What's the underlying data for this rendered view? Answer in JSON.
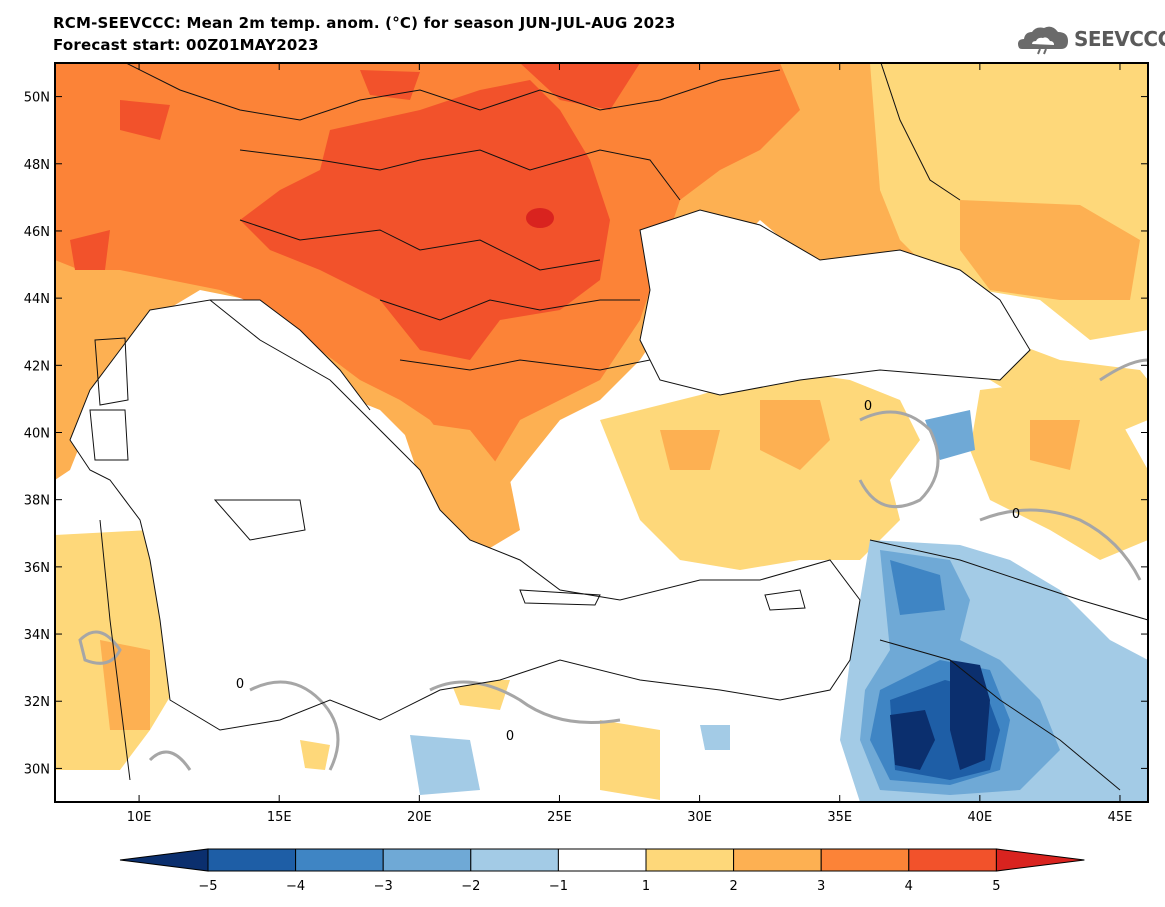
{
  "header": {
    "title_line1": "RCM-SEEVCCC: Mean 2m temp. anom. (°C) for season JUN-JUL-AUG 2023",
    "title_line2": "Forecast start: 00Z01MAY2023",
    "logo_text": "SEEVCCC",
    "logo_icon": "cloud-logo-icon"
  },
  "map": {
    "lon_range": [
      7,
      46
    ],
    "lat_range": [
      29,
      51
    ],
    "lon_ticks": [
      {
        "value": 10,
        "label": "10E"
      },
      {
        "value": 15,
        "label": "15E"
      },
      {
        "value": 20,
        "label": "20E"
      },
      {
        "value": 25,
        "label": "25E"
      },
      {
        "value": 30,
        "label": "30E"
      },
      {
        "value": 35,
        "label": "35E"
      },
      {
        "value": 40,
        "label": "40E"
      },
      {
        "value": 45,
        "label": "45E"
      }
    ],
    "lat_ticks": [
      {
        "value": 50,
        "label": "50N"
      },
      {
        "value": 48,
        "label": "48N"
      },
      {
        "value": 46,
        "label": "46N"
      },
      {
        "value": 44,
        "label": "44N"
      },
      {
        "value": 42,
        "label": "42N"
      },
      {
        "value": 40,
        "label": "40N"
      },
      {
        "value": 38,
        "label": "38N"
      },
      {
        "value": 36,
        "label": "36N"
      },
      {
        "value": 34,
        "label": "34N"
      },
      {
        "value": 32,
        "label": "32N"
      },
      {
        "value": 30,
        "label": "30N"
      }
    ],
    "contour_label": "0"
  },
  "colorbar": {
    "levels": [
      "−5",
      "−4",
      "−3",
      "−2",
      "−1",
      "1",
      "2",
      "3",
      "4",
      "5"
    ],
    "colors": [
      "#0b2f6e",
      "#1e5ea6",
      "#3f85c4",
      "#6fa9d6",
      "#a3cbe6",
      "#ffffff",
      "#fed87a",
      "#fdb052",
      "#fc8337",
      "#f2522b",
      "#d9231f"
    ]
  },
  "palette": {
    "anom_0_1": "#ffffff",
    "anom_1_2": "#fed87a",
    "anom_2_3": "#fdb052",
    "anom_3_4": "#fc8337",
    "anom_4_5": "#f2522b",
    "anom_5_plus": "#d9231f",
    "anom_m1_m2": "#a3cbe6",
    "anom_m2_m3": "#6fa9d6",
    "anom_m3_m4": "#3f85c4",
    "anom_m4_m5": "#1e5ea6",
    "anom_below_m5": "#0b2f6e"
  }
}
